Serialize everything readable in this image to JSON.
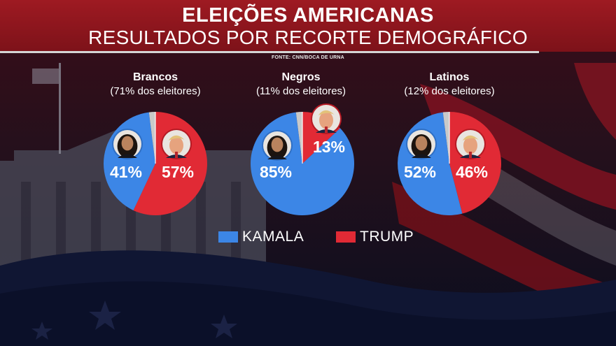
{
  "header": {
    "title": "ELEIÇÕES AMERICANAS",
    "subtitle": "RESULTADOS POR RECORTE DEMOGRÁFICO",
    "source": "FONTE: CNN/BOCA DE URNA"
  },
  "colors": {
    "kamala": "#3c86e6",
    "trump": "#e12a35",
    "other": "#c9c9c9",
    "header_bg": "#9e1a22"
  },
  "legend": [
    {
      "label": "KAMALA",
      "color": "#3c86e6"
    },
    {
      "label": "TRUMP",
      "color": "#e12a35"
    }
  ],
  "chart_data": [
    {
      "type": "pie",
      "title": "Brancos",
      "subtitle": "(71% dos eleitores)",
      "slices": [
        {
          "name": "KAMALA",
          "value": 41,
          "label": "41%",
          "color": "#3c86e6",
          "icon": "kamala-portrait-icon"
        },
        {
          "name": "TRUMP",
          "value": 57,
          "label": "57%",
          "color": "#e12a35",
          "icon": "trump-portrait-icon"
        },
        {
          "value": 2,
          "color": "#c9c9c9"
        }
      ]
    },
    {
      "type": "pie",
      "title": "Negros",
      "subtitle": "(11% dos eleitores)",
      "slices": [
        {
          "name": "KAMALA",
          "value": 85,
          "label": "85%",
          "color": "#3c86e6",
          "icon": "kamala-portrait-icon"
        },
        {
          "name": "TRUMP",
          "value": 13,
          "label": "13%",
          "color": "#e12a35",
          "icon": "trump-portrait-icon"
        },
        {
          "value": 2,
          "color": "#c9c9c9"
        }
      ]
    },
    {
      "type": "pie",
      "title": "Latinos",
      "subtitle": "(12% dos eleitores)",
      "slices": [
        {
          "name": "KAMALA",
          "value": 52,
          "label": "52%",
          "color": "#3c86e6",
          "icon": "kamala-portrait-icon"
        },
        {
          "name": "TRUMP",
          "value": 46,
          "label": "46%",
          "color": "#e12a35",
          "icon": "trump-portrait-icon"
        },
        {
          "value": 2,
          "color": "#c9c9c9"
        }
      ]
    }
  ]
}
